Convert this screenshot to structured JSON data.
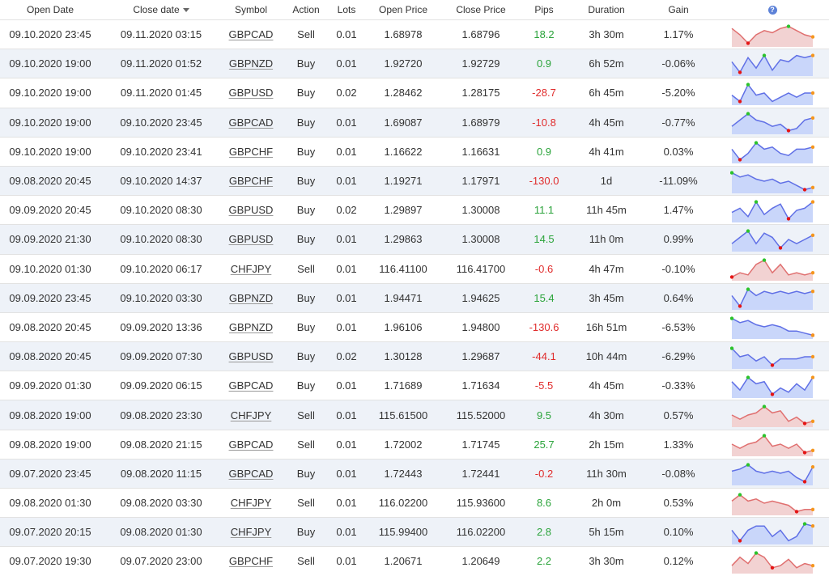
{
  "columns": {
    "open_date": "Open Date",
    "close_date": "Close date",
    "symbol": "Symbol",
    "action": "Action",
    "lots": "Lots",
    "open_price": "Open Price",
    "close_price": "Close Price",
    "pips": "Pips",
    "duration": "Duration",
    "gain": "Gain",
    "info_glyph": "?"
  },
  "colors": {
    "buy_fill": "#c9d6fa",
    "buy_line": "#6070e6",
    "sell_fill": "#f2d2d2",
    "sell_line": "#e07070",
    "positive": "#2aa33a",
    "negative": "#e02b2b",
    "max_marker": "#2bc32b",
    "min_marker": "#e51414",
    "end_marker": "#f5961e"
  },
  "trades": [
    {
      "open_date": "09.10.2020 23:45",
      "close_date": "09.11.2020 03:15",
      "symbol": "GBPCAD",
      "action": "Sell",
      "lots": "0.01",
      "open_price": "1.68978",
      "close_price": "1.68796",
      "pips": "18.2",
      "duration": "3h 30m",
      "gain": "1.17%",
      "spark": [
        0.8,
        0.5,
        0.1,
        0.5,
        0.7,
        0.6,
        0.8,
        0.9,
        0.7,
        0.5,
        0.4
      ]
    },
    {
      "open_date": "09.10.2020 19:00",
      "close_date": "09.11.2020 01:52",
      "symbol": "GBPNZD",
      "action": "Buy",
      "lots": "0.01",
      "open_price": "1.92720",
      "close_price": "1.92729",
      "pips": "0.9",
      "duration": "6h 52m",
      "gain": "-0.06%",
      "spark": [
        0.6,
        0.1,
        0.8,
        0.3,
        0.9,
        0.2,
        0.7,
        0.6,
        0.9,
        0.8,
        0.9
      ]
    },
    {
      "open_date": "09.10.2020 19:00",
      "close_date": "09.11.2020 01:45",
      "symbol": "GBPUSD",
      "action": "Buy",
      "lots": "0.02",
      "open_price": "1.28462",
      "close_price": "1.28175",
      "pips": "-28.7",
      "duration": "6h 45m",
      "gain": "-5.20%",
      "spark": [
        0.4,
        0.1,
        0.9,
        0.4,
        0.5,
        0.1,
        0.3,
        0.5,
        0.3,
        0.5,
        0.5
      ]
    },
    {
      "open_date": "09.10.2020 19:00",
      "close_date": "09.10.2020 23:45",
      "symbol": "GBPCAD",
      "action": "Buy",
      "lots": "0.01",
      "open_price": "1.69087",
      "close_price": "1.68979",
      "pips": "-10.8",
      "duration": "4h 45m",
      "gain": "-0.77%",
      "spark": [
        0.3,
        0.6,
        0.9,
        0.6,
        0.5,
        0.3,
        0.4,
        0.1,
        0.2,
        0.6,
        0.7
      ]
    },
    {
      "open_date": "09.10.2020 19:00",
      "close_date": "09.10.2020 23:41",
      "symbol": "GBPCHF",
      "action": "Buy",
      "lots": "0.01",
      "open_price": "1.16622",
      "close_price": "1.16631",
      "pips": "0.9",
      "duration": "4h 41m",
      "gain": "0.03%",
      "spark": [
        0.6,
        0.1,
        0.4,
        0.9,
        0.6,
        0.7,
        0.4,
        0.3,
        0.6,
        0.6,
        0.7
      ]
    },
    {
      "open_date": "09.08.2020 20:45",
      "close_date": "09.10.2020 14:37",
      "symbol": "GBPCHF",
      "action": "Buy",
      "lots": "0.01",
      "open_price": "1.19271",
      "close_price": "1.17971",
      "pips": "-130.0",
      "duration": "1d",
      "gain": "-11.09%",
      "spark": [
        0.9,
        0.7,
        0.8,
        0.6,
        0.5,
        0.6,
        0.4,
        0.5,
        0.3,
        0.1,
        0.2
      ]
    },
    {
      "open_date": "09.09.2020 20:45",
      "close_date": "09.10.2020 08:30",
      "symbol": "GBPUSD",
      "action": "Buy",
      "lots": "0.02",
      "open_price": "1.29897",
      "close_price": "1.30008",
      "pips": "11.1",
      "duration": "11h 45m",
      "gain": "1.47%",
      "spark": [
        0.4,
        0.6,
        0.2,
        0.9,
        0.3,
        0.6,
        0.8,
        0.1,
        0.5,
        0.6,
        0.9
      ]
    },
    {
      "open_date": "09.09.2020 21:30",
      "close_date": "09.10.2020 08:30",
      "symbol": "GBPUSD",
      "action": "Buy",
      "lots": "0.01",
      "open_price": "1.29863",
      "close_price": "1.30008",
      "pips": "14.5",
      "duration": "11h 0m",
      "gain": "0.99%",
      "spark": [
        0.3,
        0.6,
        0.9,
        0.3,
        0.8,
        0.6,
        0.1,
        0.5,
        0.3,
        0.5,
        0.7
      ]
    },
    {
      "open_date": "09.10.2020 01:30",
      "close_date": "09.10.2020 06:17",
      "symbol": "CHFJPY",
      "action": "Sell",
      "lots": "0.01",
      "open_price": "116.41100",
      "close_price": "116.41700",
      "pips": "-0.6",
      "duration": "4h 47m",
      "gain": "-0.10%",
      "spark": [
        0.1,
        0.3,
        0.2,
        0.7,
        0.9,
        0.3,
        0.7,
        0.2,
        0.3,
        0.2,
        0.3
      ]
    },
    {
      "open_date": "09.09.2020 23:45",
      "close_date": "09.10.2020 03:30",
      "symbol": "GBPNZD",
      "action": "Buy",
      "lots": "0.01",
      "open_price": "1.94471",
      "close_price": "1.94625",
      "pips": "15.4",
      "duration": "3h 45m",
      "gain": "0.64%",
      "spark": [
        0.6,
        0.1,
        0.9,
        0.6,
        0.8,
        0.7,
        0.8,
        0.7,
        0.8,
        0.7,
        0.8
      ]
    },
    {
      "open_date": "09.08.2020 20:45",
      "close_date": "09.09.2020 13:36",
      "symbol": "GBPNZD",
      "action": "Buy",
      "lots": "0.01",
      "open_price": "1.96106",
      "close_price": "1.94800",
      "pips": "-130.6",
      "duration": "16h 51m",
      "gain": "-6.53%",
      "spark": [
        0.9,
        0.7,
        0.8,
        0.6,
        0.5,
        0.6,
        0.5,
        0.3,
        0.3,
        0.2,
        0.1
      ]
    },
    {
      "open_date": "09.08.2020 20:45",
      "close_date": "09.09.2020 07:30",
      "symbol": "GBPUSD",
      "action": "Buy",
      "lots": "0.02",
      "open_price": "1.30128",
      "close_price": "1.29687",
      "pips": "-44.1",
      "duration": "10h 44m",
      "gain": "-6.29%",
      "spark": [
        0.9,
        0.5,
        0.6,
        0.3,
        0.5,
        0.1,
        0.4,
        0.4,
        0.4,
        0.5,
        0.5
      ]
    },
    {
      "open_date": "09.09.2020 01:30",
      "close_date": "09.09.2020 06:15",
      "symbol": "GBPCAD",
      "action": "Buy",
      "lots": "0.01",
      "open_price": "1.71689",
      "close_price": "1.71634",
      "pips": "-5.5",
      "duration": "4h 45m",
      "gain": "-0.33%",
      "spark": [
        0.7,
        0.3,
        0.9,
        0.6,
        0.7,
        0.1,
        0.4,
        0.2,
        0.6,
        0.3,
        0.9
      ]
    },
    {
      "open_date": "09.08.2020 19:00",
      "close_date": "09.08.2020 23:30",
      "symbol": "CHFJPY",
      "action": "Sell",
      "lots": "0.01",
      "open_price": "115.61500",
      "close_price": "115.52000",
      "pips": "9.5",
      "duration": "4h 30m",
      "gain": "0.57%",
      "spark": [
        0.5,
        0.3,
        0.5,
        0.6,
        0.9,
        0.6,
        0.7,
        0.2,
        0.4,
        0.1,
        0.2
      ]
    },
    {
      "open_date": "09.08.2020 19:00",
      "close_date": "09.08.2020 21:15",
      "symbol": "GBPCAD",
      "action": "Sell",
      "lots": "0.01",
      "open_price": "1.72002",
      "close_price": "1.71745",
      "pips": "25.7",
      "duration": "2h 15m",
      "gain": "1.33%",
      "spark": [
        0.5,
        0.3,
        0.5,
        0.6,
        0.9,
        0.4,
        0.5,
        0.3,
        0.5,
        0.1,
        0.2
      ]
    },
    {
      "open_date": "09.07.2020 23:45",
      "close_date": "09.08.2020 11:15",
      "symbol": "GBPCAD",
      "action": "Buy",
      "lots": "0.01",
      "open_price": "1.72443",
      "close_price": "1.72441",
      "pips": "-0.2",
      "duration": "11h 30m",
      "gain": "-0.08%",
      "spark": [
        0.6,
        0.7,
        0.9,
        0.6,
        0.5,
        0.6,
        0.5,
        0.6,
        0.3,
        0.1,
        0.8
      ]
    },
    {
      "open_date": "09.08.2020 01:30",
      "close_date": "09.08.2020 03:30",
      "symbol": "CHFJPY",
      "action": "Sell",
      "lots": "0.01",
      "open_price": "116.02200",
      "close_price": "115.93600",
      "pips": "8.6",
      "duration": "2h 0m",
      "gain": "0.53%",
      "spark": [
        0.6,
        0.9,
        0.6,
        0.7,
        0.5,
        0.6,
        0.5,
        0.4,
        0.1,
        0.2,
        0.2
      ]
    },
    {
      "open_date": "09.07.2020 20:15",
      "close_date": "09.08.2020 01:30",
      "symbol": "CHFJPY",
      "action": "Buy",
      "lots": "0.01",
      "open_price": "115.99400",
      "close_price": "116.02200",
      "pips": "2.8",
      "duration": "5h 15m",
      "gain": "0.10%",
      "spark": [
        0.6,
        0.1,
        0.6,
        0.8,
        0.8,
        0.3,
        0.6,
        0.1,
        0.3,
        0.9,
        0.8
      ]
    },
    {
      "open_date": "09.07.2020 19:30",
      "close_date": "09.07.2020 23:00",
      "symbol": "GBPCHF",
      "action": "Sell",
      "lots": "0.01",
      "open_price": "1.20671",
      "close_price": "1.20649",
      "pips": "2.2",
      "duration": "3h 30m",
      "gain": "0.12%",
      "spark": [
        0.3,
        0.7,
        0.4,
        0.9,
        0.7,
        0.2,
        0.3,
        0.6,
        0.2,
        0.4,
        0.3
      ]
    }
  ]
}
